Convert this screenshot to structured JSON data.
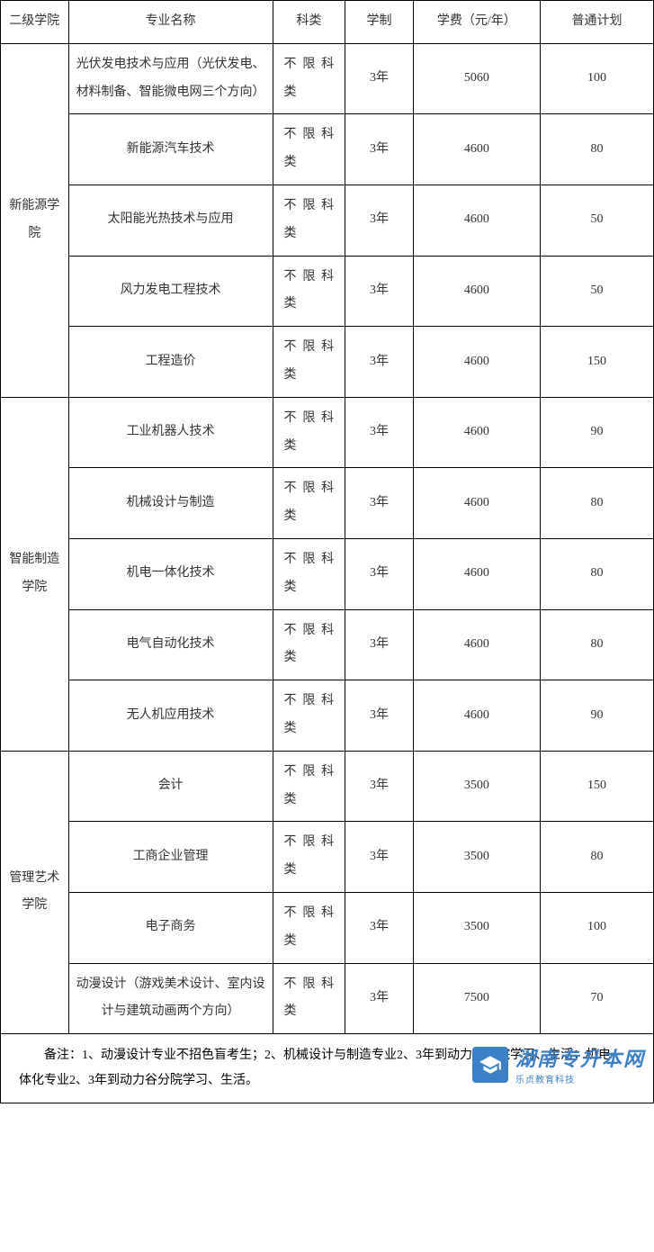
{
  "header": {
    "dept": "二级学院",
    "major": "专业名称",
    "category": "科类",
    "duration": "学制",
    "fee": "学费（元/年）",
    "plan": "普通计划"
  },
  "departments": [
    {
      "name": "新能源学院",
      "rows": [
        {
          "major": "光伏发电技术与应用（光伏发电、材料制备、智能微电网三个方向）",
          "category": "不限科类",
          "duration": "3年",
          "fee": "5060",
          "plan": "100"
        },
        {
          "major": "新能源汽车技术",
          "category": "不限科类",
          "duration": "3年",
          "fee": "4600",
          "plan": "80"
        },
        {
          "major": "太阳能光热技术与应用",
          "category": "不限科类",
          "duration": "3年",
          "fee": "4600",
          "plan": "50"
        },
        {
          "major": "风力发电工程技术",
          "category": "不限科类",
          "duration": "3年",
          "fee": "4600",
          "plan": "50"
        },
        {
          "major": "工程造价",
          "category": "不限科类",
          "duration": "3年",
          "fee": "4600",
          "plan": "150"
        }
      ]
    },
    {
      "name": "智能制造学院",
      "rows": [
        {
          "major": "工业机器人技术",
          "category": "不限科类",
          "duration": "3年",
          "fee": "4600",
          "plan": "90"
        },
        {
          "major": "机械设计与制造",
          "category": "不限科类",
          "duration": "3年",
          "fee": "4600",
          "plan": "80"
        },
        {
          "major": "机电一体化技术",
          "category": "不限科类",
          "duration": "3年",
          "fee": "4600",
          "plan": "80"
        },
        {
          "major": "电气自动化技术",
          "category": "不限科类",
          "duration": "3年",
          "fee": "4600",
          "plan": "80"
        },
        {
          "major": "无人机应用技术",
          "category": "不限科类",
          "duration": "3年",
          "fee": "4600",
          "plan": "90"
        }
      ]
    },
    {
      "name": "管理艺术学院",
      "rows": [
        {
          "major": "会计",
          "category": "不限科类",
          "duration": "3年",
          "fee": "3500",
          "plan": "150"
        },
        {
          "major": "工商企业管理",
          "category": "不限科类",
          "duration": "3年",
          "fee": "3500",
          "plan": "80"
        },
        {
          "major": "电子商务",
          "category": "不限科类",
          "duration": "3年",
          "fee": "3500",
          "plan": "100"
        },
        {
          "major": "动漫设计（游戏美术设计、室内设计与建筑动画两个方向）",
          "category": "不限科类",
          "duration": "3年",
          "fee": "7500",
          "plan": "70"
        }
      ]
    }
  ],
  "footnote": "备注：1、动漫设计专业不招色盲考生；2、机械设计与制造专业2、3年到动力谷分院学习、生活；机电一体化专业2、3年到动力谷分院学习、生活。",
  "watermark": {
    "main": "湖南专升本网",
    "sub": "乐贞教育科技"
  },
  "styling": {
    "border_color": "#000000",
    "text_color": "#333333",
    "bg_color": "#ffffff",
    "font_family": "SimSun",
    "base_fontsize": 14,
    "watermark_color": "#3b7fc4",
    "columns": {
      "dept": 75,
      "major": 225,
      "category": 80,
      "duration": 75,
      "fee": 140,
      "plan": 125
    }
  }
}
